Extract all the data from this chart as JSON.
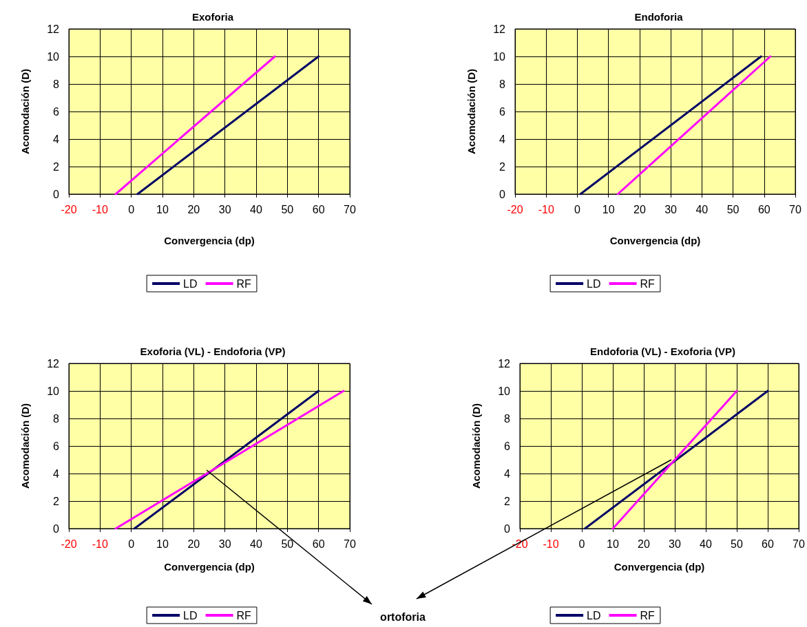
{
  "chart_data": [
    {
      "type": "line",
      "title": "Exoforia",
      "xlabel": "Convergencia (dp)",
      "ylabel": "Acomodación (D)",
      "xlim": [
        -20,
        70
      ],
      "xticks": [
        -20,
        -10,
        0,
        10,
        20,
        30,
        40,
        50,
        60,
        70
      ],
      "ylim": [
        0,
        12
      ],
      "yticks": [
        0,
        2,
        4,
        6,
        8,
        10,
        12
      ],
      "grid": true,
      "legend": "bottom",
      "marker": "none",
      "line_style": "solid",
      "series": [
        {
          "name": "LD",
          "color": "#000066",
          "x": [
            2,
            60
          ],
          "values": [
            0,
            10
          ]
        },
        {
          "name": "RF",
          "color": "#ff00ff",
          "x": [
            -5,
            46
          ],
          "values": [
            0,
            10
          ]
        }
      ]
    },
    {
      "type": "line",
      "title": "Endoforia",
      "xlabel": "Convergencia (dp)",
      "ylabel": "Acomodación (D)",
      "xlim": [
        -20,
        70
      ],
      "xticks": [
        -20,
        -10,
        0,
        10,
        20,
        30,
        40,
        50,
        60,
        70
      ],
      "ylim": [
        0,
        12
      ],
      "yticks": [
        0,
        2,
        4,
        6,
        8,
        10,
        12
      ],
      "grid": true,
      "legend": "bottom",
      "marker": "none",
      "line_style": "solid",
      "series": [
        {
          "name": "LD",
          "color": "#000066",
          "x": [
            1,
            59
          ],
          "values": [
            0,
            10
          ]
        },
        {
          "name": "RF",
          "color": "#ff00ff",
          "x": [
            13,
            62
          ],
          "values": [
            0,
            10
          ]
        }
      ]
    },
    {
      "type": "line",
      "title": "Exoforia (VL) - Endoforia (VP)",
      "xlabel": "Convergencia (dp)",
      "ylabel": "Acomodación (D)",
      "xlim": [
        -20,
        70
      ],
      "xticks": [
        -20,
        -10,
        0,
        10,
        20,
        30,
        40,
        50,
        60,
        70
      ],
      "ylim": [
        0,
        12
      ],
      "yticks": [
        0,
        2,
        4,
        6,
        8,
        10,
        12
      ],
      "grid": true,
      "legend": "bottom",
      "marker": "none",
      "line_style": "solid",
      "annotations": [
        "ortoforia"
      ],
      "series": [
        {
          "name": "LD",
          "color": "#000066",
          "x": [
            1,
            60
          ],
          "values": [
            0,
            10
          ]
        },
        {
          "name": "RF",
          "color": "#ff00ff",
          "x": [
            -5,
            68
          ],
          "values": [
            0,
            10
          ]
        }
      ]
    },
    {
      "type": "line",
      "title": "Endoforia (VL) - Exoforia (VP)",
      "xlabel": "Convergencia (dp)",
      "ylabel": "Acomodación (D)",
      "xlim": [
        -20,
        70
      ],
      "xticks": [
        -20,
        -10,
        0,
        10,
        20,
        30,
        40,
        50,
        60,
        70
      ],
      "ylim": [
        0,
        12
      ],
      "yticks": [
        0,
        2,
        4,
        6,
        8,
        10,
        12
      ],
      "grid": true,
      "legend": "bottom",
      "marker": "none",
      "line_style": "solid",
      "series": [
        {
          "name": "LD",
          "color": "#000066",
          "x": [
            1,
            60
          ],
          "values": [
            0,
            10
          ]
        },
        {
          "name": "RF",
          "color": "#ff00ff",
          "x": [
            10,
            50
          ],
          "values": [
            0,
            10
          ]
        }
      ]
    }
  ]
}
